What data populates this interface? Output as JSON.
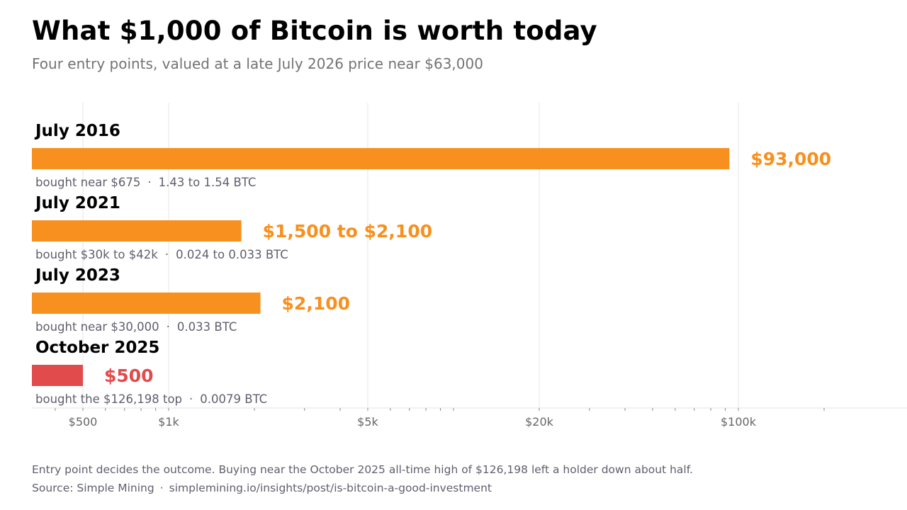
{
  "header": {
    "title": "What $1,000 of Bitcoin is worth today",
    "subtitle": "Four entry points, valued at a late July 2026 price near $63,000"
  },
  "chart_data": {
    "type": "bar",
    "orientation": "horizontal",
    "x_scale": "log",
    "xlim": [
      400,
      200000
    ],
    "grid": true,
    "x_ticks": [
      {
        "value": 500,
        "label": "$500"
      },
      {
        "value": 1000,
        "label": "$1k"
      },
      {
        "value": 5000,
        "label": "$5k"
      },
      {
        "value": 20000,
        "label": "$20k"
      },
      {
        "value": 100000,
        "label": "$100k"
      }
    ],
    "categories": [
      "July 2016",
      "July 2021",
      "July 2023",
      "October 2025"
    ],
    "values": [
      93000,
      1800,
      2100,
      500
    ],
    "value_labels": [
      "$93,000",
      "$1,500 to $2,100",
      "$2,100",
      "$500"
    ],
    "details": [
      {
        "price": "bought near $675",
        "btc": "1.43 to 1.54 BTC"
      },
      {
        "price": "bought $30k to $42k",
        "btc": "0.024 to 0.033 BTC"
      },
      {
        "price": "bought near $30,000",
        "btc": "0.033 BTC"
      },
      {
        "price": "bought the $126,198 top",
        "btc": "0.0079 BTC"
      }
    ],
    "colors": [
      "#f7901e",
      "#f7901e",
      "#f7901e",
      "#e24b4b"
    ]
  },
  "footer": {
    "note": "Entry point decides the outcome. Buying near the October 2025 all-time high of $126,198 left a holder down about half.",
    "source_label": "Source: Simple Mining",
    "separator": "·",
    "source_url": "simplemining.io/insights/post/is-bitcoin-a-good-investment"
  }
}
